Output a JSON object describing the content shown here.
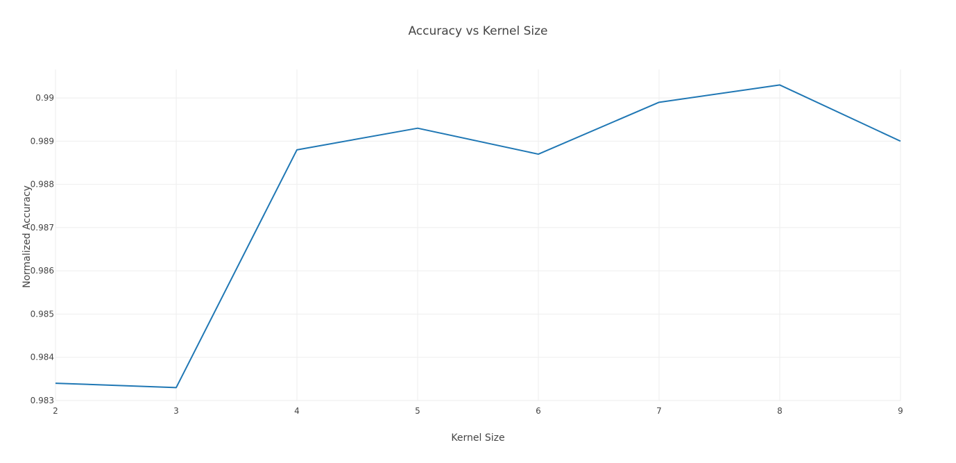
{
  "chart_data": {
    "type": "line",
    "title": "Accuracy vs Kernel Size",
    "xlabel": "Kernel Size",
    "ylabel": "Normalized Accuracy",
    "x": [
      2,
      3,
      4,
      5,
      6,
      7,
      8,
      9
    ],
    "series": [
      {
        "values": [
          0.9834,
          0.9833,
          0.9888,
          0.9893,
          0.9887,
          0.9899,
          0.9903,
          0.989
        ],
        "color": "#1f77b4"
      }
    ],
    "xlim": [
      2,
      9
    ],
    "ylim": [
      0.983,
      0.99066
    ],
    "xticks": [
      2,
      3,
      4,
      5,
      6,
      7,
      8,
      9
    ],
    "yticks": [
      0.983,
      0.984,
      0.985,
      0.986,
      0.987,
      0.988,
      0.989,
      0.99
    ],
    "ytick_labels": [
      "0.983",
      "0.984",
      "0.985",
      "0.986",
      "0.987",
      "0.988",
      "0.989",
      "0.99"
    ],
    "grid": true,
    "legend": false
  }
}
